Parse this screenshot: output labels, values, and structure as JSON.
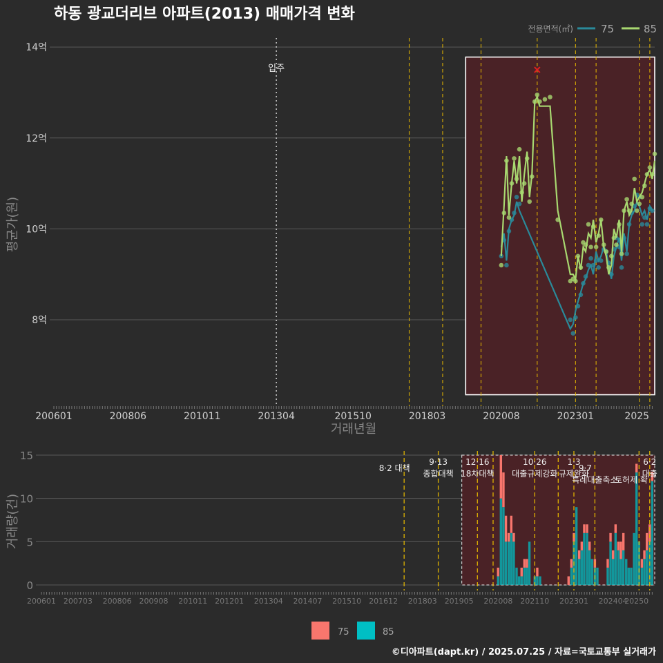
{
  "title": "하동 광교더리브 아파트(2013) 매매가격 변화",
  "footer": "©디아파트(dapt.kr) / 2025.07.25 / 자료=국토교통부 실거래가",
  "colors": {
    "bg": "#2b2b2b",
    "line75": "#2a8a9a",
    "line85": "#a8d870",
    "bar75": "#f8766d",
    "bar85": "#00bfc4",
    "highlight": "#4a2226",
    "policy": "#e6b800",
    "move_in": "#cccccc"
  },
  "chart_data": [
    {
      "type": "line",
      "title": "",
      "xlabel": "거래년월",
      "ylabel": "평균가(원)",
      "legend_title": "전용면적(㎡)",
      "legend_position": "top-right",
      "x_ticks": [
        "200601",
        "200806",
        "201011",
        "201304",
        "201510",
        "201803",
        "202008",
        "202301",
        "2025"
      ],
      "y_ticks": [
        {
          "v": 8,
          "label": "8억"
        },
        {
          "v": 10,
          "label": "10억"
        },
        {
          "v": 12,
          "label": "12억"
        },
        {
          "v": 14,
          "label": "14억"
        }
      ],
      "xlim": [
        2006.0,
        2025.58
      ],
      "ylim": [
        6.1,
        14.2
      ],
      "highlight_period": [
        2019.42,
        2025.58
      ],
      "move_in": {
        "x": 2013.25,
        "label": "입주"
      },
      "policy_lines": [
        2017.58,
        2018.67,
        2019.92,
        2021.75,
        2023.0,
        2023.67,
        2025.08,
        2025.42
      ],
      "marker_x": {
        "x": 2021.75,
        "y": 13.5
      },
      "series": [
        {
          "name": "75",
          "x": [
            2020.58,
            2020.67,
            2020.75,
            2020.83,
            2020.92,
            2021.0,
            2021.08,
            2021.17,
            2022.83,
            2022.92,
            2023.0,
            2023.08,
            2023.17,
            2023.25,
            2023.33,
            2023.42,
            2023.5,
            2023.58,
            2023.67,
            2023.75,
            2023.83,
            2023.92,
            2024.0,
            2024.08,
            2024.17,
            2024.25,
            2024.33,
            2024.42,
            2024.5,
            2024.58,
            2024.67,
            2024.75,
            2024.83,
            2024.92,
            2025.0,
            2025.08,
            2025.17,
            2025.25,
            2025.33,
            2025.42,
            2025.5
          ],
          "values": [
            9.6,
            9.9,
            9.3,
            10.0,
            10.2,
            10.3,
            10.6,
            10.4,
            7.8,
            7.9,
            8.2,
            8.4,
            8.6,
            8.8,
            8.9,
            9.1,
            9.2,
            9.0,
            9.5,
            9.3,
            9.4,
            9.6,
            9.5,
            9.2,
            8.9,
            9.4,
            9.6,
            9.8,
            9.3,
            9.9,
            9.5,
            10.1,
            10.3,
            10.4,
            10.6,
            10.5,
            10.3,
            10.4,
            10.2,
            10.5,
            10.4
          ]
        },
        {
          "name": "85",
          "x": [
            2020.58,
            2020.67,
            2020.75,
            2020.83,
            2020.92,
            2021.0,
            2021.08,
            2021.17,
            2021.25,
            2021.33,
            2021.42,
            2021.5,
            2021.58,
            2021.67,
            2021.75,
            2021.83,
            2022.0,
            2022.17,
            2022.42,
            2022.83,
            2022.92,
            2023.0,
            2023.08,
            2023.17,
            2023.25,
            2023.33,
            2023.42,
            2023.5,
            2023.58,
            2023.67,
            2023.75,
            2023.83,
            2023.92,
            2024.0,
            2024.08,
            2024.17,
            2024.25,
            2024.33,
            2024.42,
            2024.5,
            2024.58,
            2024.67,
            2024.75,
            2024.83,
            2024.92,
            2025.0,
            2025.08,
            2025.17,
            2025.25,
            2025.33,
            2025.42,
            2025.5,
            2025.58
          ],
          "values": [
            9.4,
            10.5,
            11.6,
            10.3,
            11.0,
            11.5,
            11.0,
            11.6,
            10.6,
            11.2,
            11.7,
            10.7,
            11.2,
            12.8,
            12.9,
            12.7,
            12.7,
            12.7,
            10.4,
            9.0,
            9.0,
            8.9,
            9.4,
            9.1,
            9.6,
            9.5,
            9.9,
            9.8,
            10.2,
            9.7,
            9.9,
            10.2,
            9.6,
            9.4,
            9.0,
            9.2,
            10.0,
            9.8,
            10.2,
            9.5,
            10.4,
            10.6,
            10.3,
            10.4,
            10.9,
            10.6,
            10.7,
            10.8,
            11.0,
            11.2,
            11.3,
            11.1,
            11.5
          ]
        }
      ]
    },
    {
      "type": "bar",
      "stacked": true,
      "xlabel": "",
      "ylabel": "거래량(건)",
      "x_ticks": [
        "200601",
        "200703",
        "200806",
        "200908",
        "201011",
        "201201",
        "201304",
        "201407",
        "201510",
        "201612",
        "201803",
        "201905",
        "202008",
        "202110",
        "202301",
        "202404",
        "20250"
      ],
      "y_ticks": [
        0,
        5,
        10,
        15
      ],
      "xlim": [
        2006.0,
        2025.58
      ],
      "ylim": [
        0,
        15
      ],
      "highlight_period": [
        2019.42,
        2025.58
      ],
      "policy_lines": [
        2017.58,
        2018.67,
        2019.92,
        2020.42,
        2021.75,
        2022.5,
        2023.0,
        2023.67,
        2025.08,
        2025.42
      ],
      "annotations": [
        {
          "x": 2017.58,
          "lines": [
            "8·2 대책"
          ],
          "row": 1
        },
        {
          "x": 2018.67,
          "lines": [
            "9·13",
            "종합대책"
          ],
          "row": 0
        },
        {
          "x": 2019.92,
          "lines": [
            "12·16",
            "18차대책"
          ],
          "row": 0
        },
        {
          "x": 2021.75,
          "lines": [
            "10·26",
            "대출규제강화"
          ],
          "row": 0
        },
        {
          "x": 2023.0,
          "lines": [
            "1·3",
            "규제완화"
          ],
          "row": 0
        },
        {
          "x": 2023.67,
          "lines": [
            "9·7",
            "특례대출축소"
          ],
          "row": 1
        },
        {
          "x": 2024.83,
          "lines": [
            "",
            "토허제 확"
          ],
          "row": 1
        },
        {
          "x": 2025.42,
          "lines": [
            "6·2",
            "대출"
          ],
          "row": 0
        }
      ],
      "x": [
        2020.58,
        2020.67,
        2020.75,
        2020.83,
        2020.92,
        2021.0,
        2021.08,
        2021.17,
        2021.25,
        2021.33,
        2021.42,
        2021.5,
        2021.58,
        2021.67,
        2021.75,
        2021.83,
        2021.92,
        2022.0,
        2022.08,
        2022.17,
        2022.25,
        2022.33,
        2022.42,
        2022.5,
        2022.58,
        2022.67,
        2022.75,
        2022.83,
        2022.92,
        2023.0,
        2023.08,
        2023.17,
        2023.25,
        2023.33,
        2023.42,
        2023.5,
        2023.58,
        2023.67,
        2023.75,
        2023.83,
        2023.92,
        2024.0,
        2024.08,
        2024.17,
        2024.25,
        2024.33,
        2024.42,
        2024.5,
        2024.58,
        2024.67,
        2024.75,
        2024.83,
        2024.92,
        2025.0,
        2025.08,
        2025.17,
        2025.25,
        2025.33,
        2025.42,
        2025.5
      ],
      "series": [
        {
          "name": "75",
          "values": [
            1,
            5,
            4,
            3,
            1,
            2,
            1,
            0,
            0,
            1,
            1,
            1,
            0,
            0,
            0,
            1,
            0,
            0,
            0,
            0,
            0,
            0,
            0,
            0,
            0,
            0,
            0,
            1,
            1,
            1,
            0,
            1,
            1,
            1,
            1,
            1,
            0,
            1,
            0,
            0,
            0,
            0,
            1,
            1,
            1,
            1,
            1,
            2,
            2,
            0,
            0,
            0,
            0,
            1,
            0,
            1,
            1,
            2,
            2,
            1
          ]
        },
        {
          "name": "85",
          "values": [
            1,
            10,
            9,
            5,
            5,
            6,
            5,
            2,
            1,
            1,
            2,
            2,
            5,
            0,
            1,
            1,
            1,
            0,
            0,
            0,
            0,
            0,
            0,
            0,
            0,
            0,
            0,
            0,
            2,
            5,
            9,
            3,
            4,
            6,
            6,
            4,
            3,
            2,
            2,
            0,
            0,
            0,
            2,
            5,
            3,
            6,
            4,
            3,
            4,
            3,
            2,
            2,
            6,
            13,
            5,
            2,
            3,
            4,
            5,
            12
          ]
        }
      ]
    }
  ]
}
